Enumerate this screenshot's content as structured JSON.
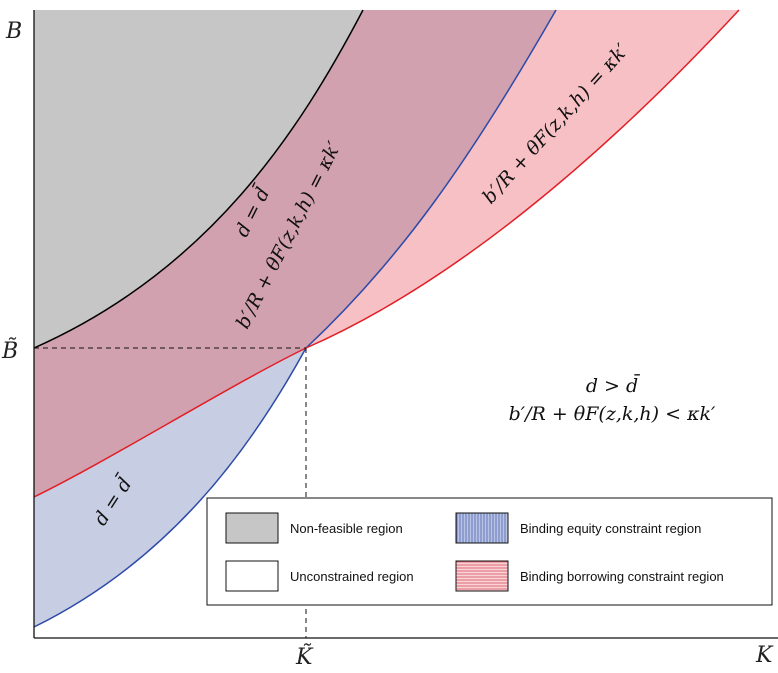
{
  "chart_data": {
    "type": "area",
    "title": "",
    "xlabel": "K",
    "ylabel": "B",
    "x_tick_labels": [
      "K̃"
    ],
    "y_tick_labels": [
      "B̃"
    ],
    "reference_point": {
      "x_label": "K̃",
      "y_label": "B̃"
    },
    "curves": [
      {
        "name": "Non-feasible boundary",
        "color": "#000000"
      },
      {
        "name": "Equity constraint boundary",
        "color": "#2d4aa8"
      },
      {
        "name": "Borrowing constraint boundary",
        "color": "#e21f26"
      }
    ],
    "region_labels": {
      "overlap_top": "d = d̄",
      "overlap_bottom": "b′/R + θF(z,k,h) = κk′",
      "borrowing": "b′/R + θF(z,k,h) = κk′",
      "equity": "d = d̄",
      "unconstrained_top": "d > d̄",
      "unconstrained_bottom": "b′/R + θF(z,k,h) < κk′"
    },
    "legend": {
      "placement": "bottom-right",
      "items": [
        {
          "label": "Non-feasible region",
          "color": "#c6c6c6",
          "pattern": "solid"
        },
        {
          "label": "Binding equity constraint region",
          "color": "#c5cce3",
          "pattern": "vertical-hatch"
        },
        {
          "label": "Unconstrained region",
          "color": "#ffffff",
          "pattern": "solid"
        },
        {
          "label": "Binding borrowing constraint region",
          "color": "#f6c0c6",
          "pattern": "horizontal-hatch"
        }
      ]
    },
    "colors": {
      "nonfeasible_fill": "#c6c6c6",
      "equity_fill": "#c7cde3",
      "borrowing_fill": "#f6c0c5",
      "overlap_fill": "#d1a1b0"
    }
  }
}
